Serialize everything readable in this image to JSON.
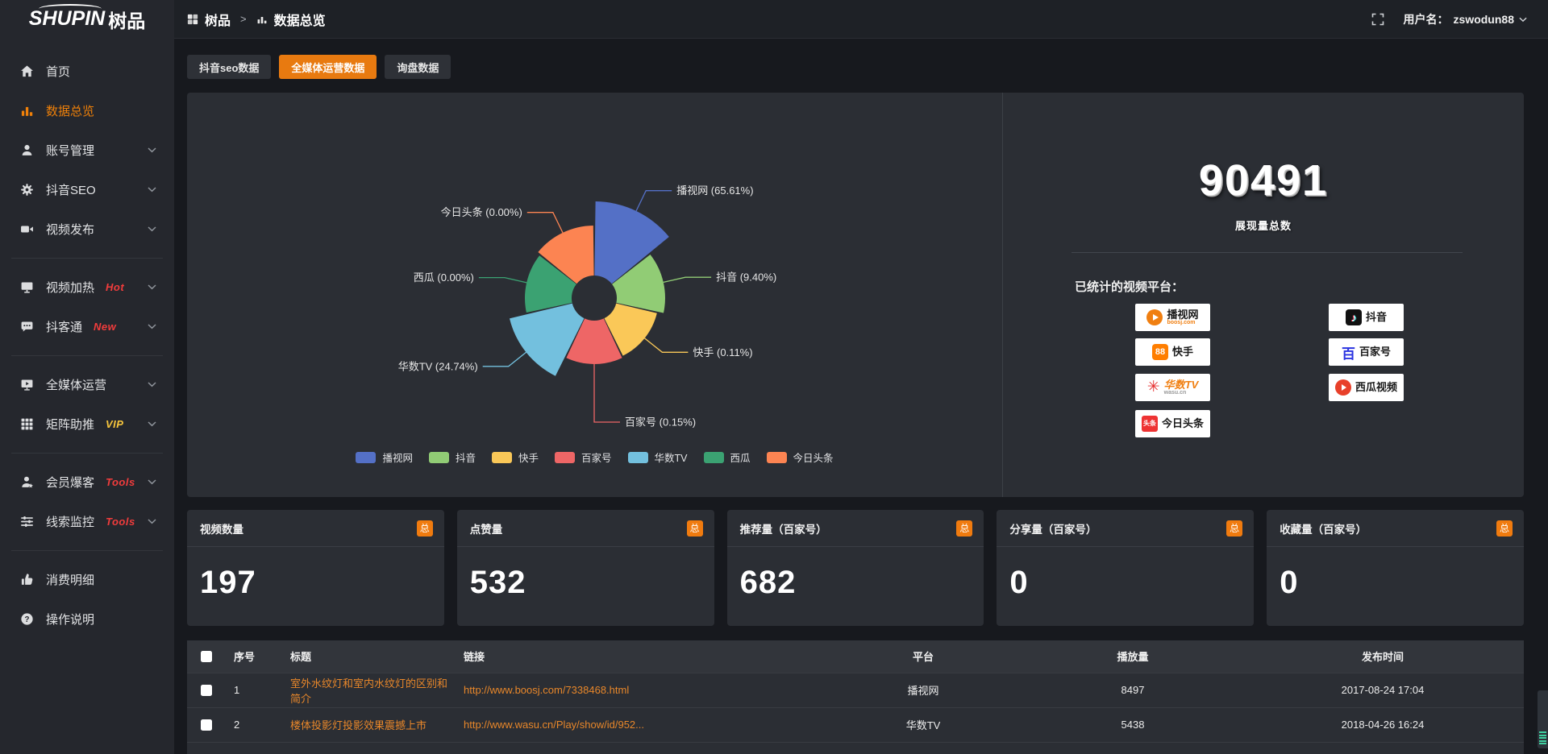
{
  "header": {
    "logo_main": "SHUPIN",
    "logo_cn": "树品",
    "breadcrumb_root": "树品",
    "breadcrumb_sep": ">",
    "breadcrumb_current": "数据总览",
    "user_prefix": "用户名：",
    "username": "zswodun88"
  },
  "sidebar": {
    "items": [
      {
        "label": "首页",
        "icon": "home-icon"
      },
      {
        "label": "数据总览",
        "icon": "bar-chart-icon",
        "active": true
      },
      {
        "label": "账号管理",
        "icon": "user-icon",
        "expandable": true
      },
      {
        "label": "抖音SEO",
        "icon": "gear-icon",
        "expandable": true
      },
      {
        "label": "视频发布",
        "icon": "video-camera-icon",
        "expandable": true,
        "divider_after": true
      },
      {
        "label": "视频加热",
        "icon": "hot-screen-icon",
        "badge": "Hot",
        "badge_color": "#f23c3c",
        "expandable": true
      },
      {
        "label": "抖客通",
        "icon": "chat-icon",
        "badge": "New",
        "badge_color": "#f23c3c",
        "expandable": true,
        "divider_after": true
      },
      {
        "label": "全媒体运营",
        "icon": "monitor-icon",
        "expandable": true
      },
      {
        "label": "矩阵助推",
        "icon": "grid-icon",
        "badge": "VIP",
        "badge_color": "#f6c53d",
        "expandable": true,
        "divider_after": true
      },
      {
        "label": "会员爆客",
        "icon": "member-icon",
        "badge": "Tools",
        "badge_color": "#f23c3c",
        "expandable": true
      },
      {
        "label": "线索监控",
        "icon": "sliders-icon",
        "badge": "Tools",
        "badge_color": "#f23c3c",
        "expandable": true,
        "divider_after": true
      },
      {
        "label": "消费明细",
        "icon": "thumb-icon"
      },
      {
        "label": "操作说明",
        "icon": "help-icon"
      }
    ]
  },
  "tabs": [
    {
      "label": "抖音seo数据"
    },
    {
      "label": "全媒体运营数据",
      "active": true
    },
    {
      "label": "询盘数据"
    }
  ],
  "chart_data": {
    "type": "pie",
    "variant": "nightingale-rose-donut",
    "legend_position": "bottom",
    "label_format": "{name} ({percent}%)",
    "slices": [
      {
        "name": "播视网",
        "percent": 65.61,
        "color": "#5470c6"
      },
      {
        "name": "抖音",
        "percent": 9.4,
        "color": "#91cc75"
      },
      {
        "name": "快手",
        "percent": 0.11,
        "color": "#fac858"
      },
      {
        "name": "百家号",
        "percent": 0.15,
        "color": "#ee6666"
      },
      {
        "name": "华数TV",
        "percent": 24.74,
        "color": "#73c0de"
      },
      {
        "name": "西瓜",
        "percent": 0.0,
        "color": "#3ba272"
      },
      {
        "name": "今日头条",
        "percent": 0.0,
        "color": "#fc8452"
      }
    ]
  },
  "summary": {
    "total_value": "90491",
    "total_label": "展现量总数",
    "platforms_label": "已统计的视频平台：",
    "platforms": [
      {
        "name": "播视网",
        "sub": "boosj.com",
        "icon": "boosj-logo",
        "col": 0,
        "row": 0
      },
      {
        "name": "快手",
        "icon": "kuaishou-logo",
        "col": 0,
        "row": 1
      },
      {
        "name": "华数TV",
        "sub": "wasu.cn",
        "icon": "wasu-logo",
        "col": 0,
        "row": 2
      },
      {
        "name": "今日头条",
        "icon": "toutiao-logo",
        "col": 0,
        "row": 3
      },
      {
        "name": "抖音",
        "icon": "douyin-logo",
        "col": 1,
        "row": 0
      },
      {
        "name": "百家号",
        "icon": "baijiahao-logo",
        "col": 1,
        "row": 1
      },
      {
        "name": "西瓜视频",
        "icon": "xigua-logo",
        "col": 1,
        "row": 2
      }
    ]
  },
  "stat_cards": [
    {
      "label": "视频数量",
      "badge": "总",
      "value": "197"
    },
    {
      "label": "点赞量",
      "badge": "总",
      "value": "532"
    },
    {
      "label": "推荐量（百家号）",
      "badge": "总",
      "value": "682"
    },
    {
      "label": "分享量（百家号）",
      "badge": "总",
      "value": "0"
    },
    {
      "label": "收藏量（百家号）",
      "badge": "总",
      "value": "0"
    }
  ],
  "table": {
    "headers": [
      "序号",
      "标题",
      "链接",
      "平台",
      "播放量",
      "发布时间"
    ],
    "rows": [
      {
        "index": "1",
        "title": "室外水纹灯和室内水纹灯的区别和简介",
        "link": "http://www.boosj.com/7338468.html",
        "platform": "播视网",
        "plays": "8497",
        "time": "2017-08-24 17:04"
      },
      {
        "index": "2",
        "title": "楼体投影灯投影效果震撼上市",
        "link": "http://www.wasu.cn/Play/show/id/952...",
        "platform": "华数TV",
        "plays": "5438",
        "time": "2018-04-26 16:24"
      }
    ]
  }
}
